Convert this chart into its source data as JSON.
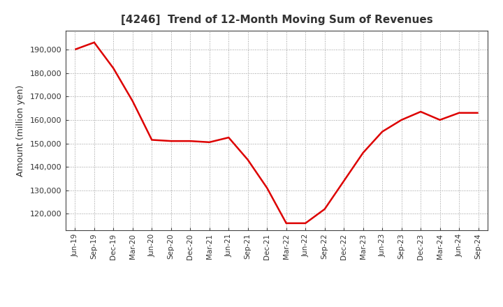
{
  "title": "[4246]  Trend of 12-Month Moving Sum of Revenues",
  "ylabel": "Amount (million yen)",
  "line_color": "#dd0000",
  "line_width": 1.8,
  "background_color": "#ffffff",
  "grid_color": "#999999",
  "labels": [
    "Jun-19",
    "Sep-19",
    "Dec-19",
    "Mar-20",
    "Jun-20",
    "Sep-20",
    "Dec-20",
    "Mar-21",
    "Jun-21",
    "Sep-21",
    "Dec-21",
    "Mar-22",
    "Jun-22",
    "Sep-22",
    "Dec-22",
    "Mar-23",
    "Jun-23",
    "Sep-23",
    "Dec-23",
    "Mar-24",
    "Jun-24",
    "Sep-24"
  ],
  "values": [
    190000,
    193000,
    182000,
    168000,
    151500,
    151000,
    151000,
    150500,
    152500,
    143000,
    131000,
    116000,
    116000,
    122000,
    134000,
    146000,
    155000,
    160000,
    163500,
    160000,
    163000,
    163000
  ],
  "yticks": [
    120000,
    130000,
    140000,
    150000,
    160000,
    170000,
    180000,
    190000
  ],
  "ylim": [
    113000,
    198000
  ]
}
